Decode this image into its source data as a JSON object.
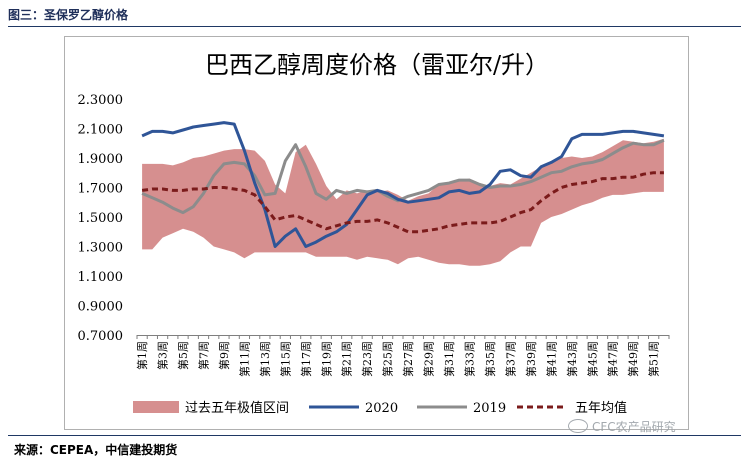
{
  "figure_caption": "图三：圣保罗乙醇价格",
  "source_note": "来源：CEPEA，中信建投期货",
  "watermark": "CFC农产品研究",
  "colors": {
    "band": "#d68f8f",
    "s2020": "#2f5597",
    "s2019": "#8c8c8c",
    "avg": "#7b1b1b",
    "rule": "#1f3864"
  },
  "chart_data": {
    "type": "line",
    "title": "巴西乙醇周度价格（雷亚尔/升）",
    "xlabel": "",
    "ylabel": "",
    "ylim": [
      0.7,
      2.3
    ],
    "yticks": [
      0.7,
      0.9,
      1.1,
      1.3,
      1.5,
      1.7,
      1.9,
      2.1,
      2.3
    ],
    "ytick_labels": [
      "0.7000",
      "0.9000",
      "1.1000",
      "1.3000",
      "1.5000",
      "1.7000",
      "1.9000",
      "2.1000",
      "2.3000"
    ],
    "xtick_labels": [
      "第1周",
      "第3周",
      "第5周",
      "第7周",
      "第9周",
      "第11周",
      "第13周",
      "第15周",
      "第17周",
      "第19周",
      "第21周",
      "第23周",
      "第25周",
      "第27周",
      "第29周",
      "第31周",
      "第33周",
      "第35周",
      "第37周",
      "第39周",
      "第41周",
      "第43周",
      "第45周",
      "第47周",
      "第49周",
      "第51周"
    ],
    "weeks": [
      1,
      2,
      3,
      4,
      5,
      6,
      7,
      8,
      9,
      10,
      11,
      12,
      13,
      14,
      15,
      16,
      17,
      18,
      19,
      20,
      21,
      22,
      23,
      24,
      25,
      26,
      27,
      28,
      29,
      30,
      31,
      32,
      33,
      34,
      35,
      36,
      37,
      38,
      39,
      40,
      41,
      42,
      43,
      44,
      45,
      46,
      47,
      48,
      49,
      50,
      51,
      52
    ],
    "legend_position": "bottom",
    "range_band": {
      "name": "过去五年极值区间",
      "upper": [
        1.86,
        1.86,
        1.86,
        1.85,
        1.87,
        1.9,
        1.91,
        1.93,
        1.95,
        1.96,
        1.96,
        1.95,
        1.88,
        1.72,
        1.66,
        1.94,
        1.99,
        1.86,
        1.71,
        1.62,
        1.68,
        1.66,
        1.68,
        1.67,
        1.68,
        1.65,
        1.61,
        1.64,
        1.66,
        1.72,
        1.73,
        1.75,
        1.76,
        1.73,
        1.71,
        1.73,
        1.72,
        1.76,
        1.8,
        1.84,
        1.88,
        1.9,
        1.91,
        1.9,
        1.91,
        1.94,
        1.98,
        2.02,
        2.01,
        2.0,
        2.01,
        2.03
      ],
      "lower": [
        1.28,
        1.28,
        1.36,
        1.39,
        1.42,
        1.4,
        1.36,
        1.3,
        1.28,
        1.26,
        1.22,
        1.26,
        1.26,
        1.26,
        1.26,
        1.26,
        1.26,
        1.23,
        1.23,
        1.23,
        1.23,
        1.21,
        1.23,
        1.22,
        1.21,
        1.18,
        1.22,
        1.23,
        1.21,
        1.19,
        1.18,
        1.18,
        1.17,
        1.17,
        1.18,
        1.2,
        1.26,
        1.3,
        1.3,
        1.46,
        1.5,
        1.52,
        1.55,
        1.58,
        1.6,
        1.63,
        1.65,
        1.65,
        1.66,
        1.67,
        1.67,
        1.67
      ]
    },
    "series": [
      {
        "name": "2020",
        "values": [
          2.05,
          2.08,
          2.08,
          2.07,
          2.09,
          2.11,
          2.12,
          2.13,
          2.14,
          2.13,
          1.95,
          1.73,
          1.55,
          1.3,
          1.37,
          1.42,
          1.3,
          1.33,
          1.37,
          1.4,
          1.45,
          1.55,
          1.65,
          1.68,
          1.66,
          1.62,
          1.6,
          1.61,
          1.62,
          1.63,
          1.67,
          1.68,
          1.66,
          1.67,
          1.72,
          1.81,
          1.82,
          1.78,
          1.77,
          1.84,
          1.87,
          1.91,
          2.03,
          2.06,
          2.06,
          2.06,
          2.07,
          2.08,
          2.08,
          2.07,
          2.06,
          2.05
        ]
      },
      {
        "name": "2019",
        "values": [
          1.66,
          1.63,
          1.6,
          1.56,
          1.53,
          1.57,
          1.66,
          1.78,
          1.86,
          1.87,
          1.86,
          1.78,
          1.65,
          1.66,
          1.88,
          1.99,
          1.84,
          1.66,
          1.62,
          1.68,
          1.66,
          1.68,
          1.67,
          1.68,
          1.64,
          1.61,
          1.64,
          1.66,
          1.68,
          1.72,
          1.73,
          1.75,
          1.75,
          1.72,
          1.7,
          1.71,
          1.71,
          1.72,
          1.74,
          1.77,
          1.8,
          1.81,
          1.84,
          1.86,
          1.87,
          1.89,
          1.93,
          1.97,
          2.0,
          1.99,
          1.99,
          2.02
        ]
      },
      {
        "name": "五年均值",
        "values": [
          1.68,
          1.69,
          1.69,
          1.68,
          1.68,
          1.69,
          1.69,
          1.7,
          1.7,
          1.69,
          1.68,
          1.65,
          1.57,
          1.48,
          1.5,
          1.51,
          1.48,
          1.45,
          1.42,
          1.44,
          1.46,
          1.47,
          1.47,
          1.48,
          1.46,
          1.43,
          1.4,
          1.4,
          1.41,
          1.42,
          1.44,
          1.45,
          1.46,
          1.46,
          1.46,
          1.47,
          1.5,
          1.53,
          1.55,
          1.61,
          1.66,
          1.7,
          1.72,
          1.73,
          1.74,
          1.76,
          1.76,
          1.77,
          1.77,
          1.79,
          1.8,
          1.8
        ]
      }
    ]
  }
}
